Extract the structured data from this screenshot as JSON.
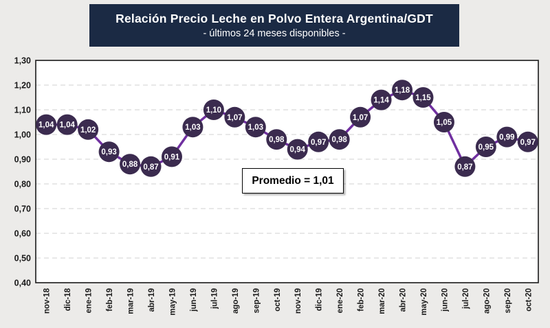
{
  "chart_data": {
    "type": "line",
    "title": "Relación Precio Leche en Polvo Entera Argentina/GDT",
    "subtitle": "- últimos 24 meses disponibles -",
    "annotation": "Promedio = 1,01",
    "categories": [
      "nov-18",
      "dic-18",
      "ene-19",
      "feb-19",
      "mar-19",
      "abr-19",
      "may-19",
      "jun-19",
      "jul-19",
      "ago-19",
      "sep-19",
      "oct-19",
      "nov-19",
      "dic-19",
      "ene-20",
      "feb-20",
      "mar-20",
      "abr-20",
      "may-20",
      "jun-20",
      "jul-20",
      "ago-20",
      "sep-20",
      "oct-20"
    ],
    "values": [
      1.04,
      1.04,
      1.02,
      0.93,
      0.88,
      0.87,
      0.91,
      1.03,
      1.1,
      1.07,
      1.03,
      0.98,
      0.94,
      0.97,
      0.98,
      1.07,
      1.14,
      1.18,
      1.15,
      1.05,
      0.87,
      0.95,
      0.99,
      0.97
    ],
    "value_labels": [
      "1,04",
      "1,04",
      "1,02",
      "0,93",
      "0,88",
      "0,87",
      "0,91",
      "1,03",
      "1,10",
      "1,07",
      "1,03",
      "0,98",
      "0,94",
      "0,97",
      "0,98",
      "1,07",
      "1,14",
      "1,18",
      "1,15",
      "1,05",
      "0,87",
      "0,95",
      "0,99",
      "0,97"
    ],
    "yticks": [
      "1,30",
      "1,20",
      "1,10",
      "1,00",
      "0,90",
      "0,80",
      "0,70",
      "0,60",
      "0,50",
      "0,40"
    ],
    "ylim": [
      0.4,
      1.3
    ],
    "ytick_step": 0.1,
    "xlabel": "",
    "ylabel": "",
    "legend": "none",
    "grid": "horizontal-dashed",
    "colors": {
      "background": "#ECEBE9",
      "plot_background": "#FFFFFF",
      "plot_border": "#262626",
      "grid": "#D9D9D9",
      "line": "#7030A0",
      "marker": "#3B2B4F",
      "marker_text": "#FFFFFF",
      "axis_text": "#1A1A1A",
      "title_bg": "#1B2A44",
      "title_text": "#FFFFFF"
    }
  }
}
